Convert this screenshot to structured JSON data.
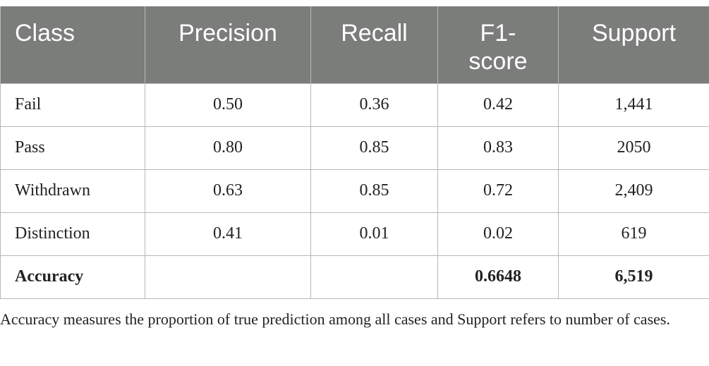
{
  "table": {
    "headers": [
      "Class",
      "Precision",
      "Recall",
      "F1-\nscore",
      "Support"
    ],
    "rows": [
      {
        "class": "Fail",
        "precision": "0.50",
        "recall": "0.36",
        "f1": "0.42",
        "support": "1,441"
      },
      {
        "class": "Pass",
        "precision": "0.80",
        "recall": "0.85",
        "f1": "0.83",
        "support": "2050"
      },
      {
        "class": "Withdrawn",
        "precision": "0.63",
        "recall": "0.85",
        "f1": "0.72",
        "support": "2,409"
      },
      {
        "class": "Distinction",
        "precision": "0.41",
        "recall": "0.01",
        "f1": "0.02",
        "support": "619"
      }
    ],
    "total": {
      "label": "Accuracy",
      "precision": "",
      "recall": "",
      "f1": "0.6648",
      "support": "6,519"
    }
  },
  "footnote": "Accuracy measures the proportion of true prediction among all cases and Support refers to number of cases.",
  "colors": {
    "header_bg": "#7b7d7b",
    "header_text": "#ffffff",
    "border": "#b8b8b8"
  }
}
